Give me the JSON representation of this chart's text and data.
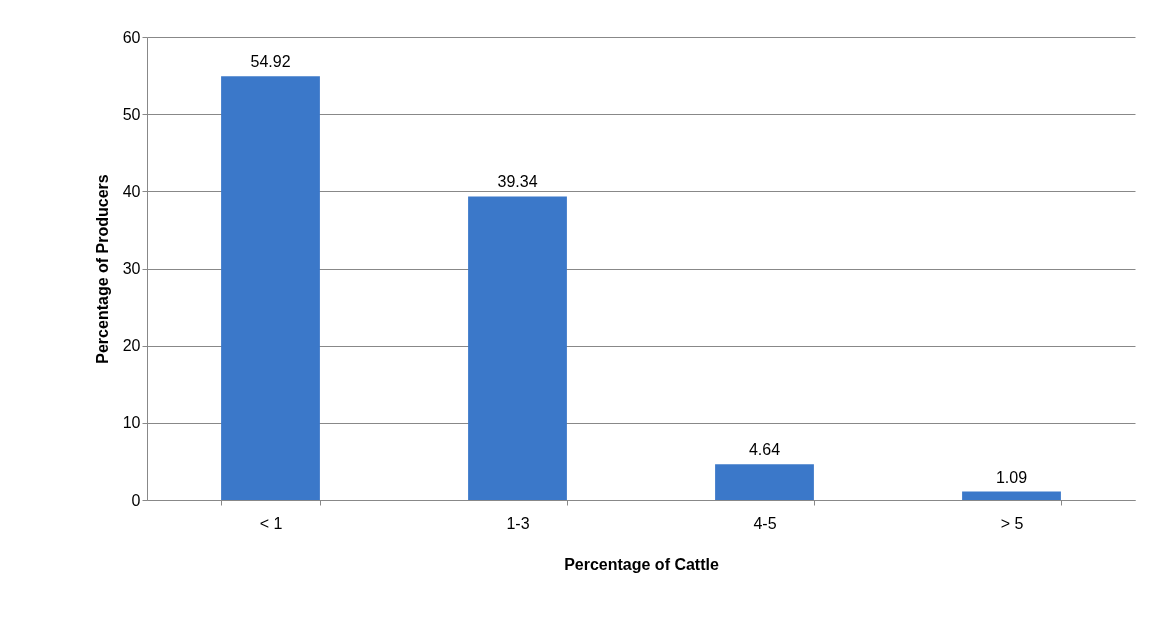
{
  "chart_data": {
    "type": "bar",
    "xlabel": "Percentage of Cattle",
    "ylabel": "Percentage of Producers",
    "categories": [
      "< 1",
      "1-3",
      "4-5",
      "> 5"
    ],
    "values": [
      54.92,
      39.34,
      4.64,
      1.09
    ],
    "color": "#3b78c9",
    "ylim": [
      0,
      60
    ],
    "yticks": [
      0,
      10,
      20,
      30,
      40,
      50,
      60
    ],
    "grid": "y",
    "data_labels": true
  }
}
